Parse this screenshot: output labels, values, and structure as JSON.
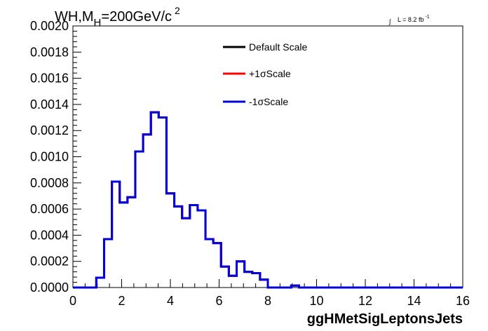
{
  "chart_data": {
    "type": "line",
    "title": {
      "main": "WH,M",
      "subscript": "H",
      "rest": "=200GeV/c",
      "superscript": "2"
    },
    "luminosity": {
      "integral_symbol": "∫",
      "text": "L = 8.2 fb",
      "superscript": "-1"
    },
    "xlabel": "ggHMetSigLeptonsJets",
    "ylabel": "",
    "xlim": [
      0,
      16
    ],
    "ylim": [
      0,
      0.002
    ],
    "x_ticks": [
      "0",
      "2",
      "4",
      "6",
      "8",
      "10",
      "12",
      "14",
      "16"
    ],
    "y_ticks": [
      "0.0000",
      "0.0002",
      "0.0004",
      "0.0006",
      "0.0008",
      "0.0010",
      "0.0012",
      "0.0014",
      "0.0016",
      "0.0018",
      "0.0020"
    ],
    "legend_position": "top-center",
    "bin_width": 0.32,
    "bin_low_edges": [
      0,
      0.32,
      0.64,
      0.96,
      1.28,
      1.6,
      1.92,
      2.24,
      2.56,
      2.88,
      3.2,
      3.52,
      3.84,
      4.16,
      4.48,
      4.8,
      5.12,
      5.44,
      5.76,
      6.08,
      6.4,
      6.72,
      7.04,
      7.36,
      7.68,
      8.0,
      8.32,
      8.64,
      8.96,
      9.28,
      9.6,
      9.92,
      10.24,
      10.56,
      10.88,
      11.2,
      11.52,
      11.84,
      12.16,
      12.48,
      12.8,
      13.12,
      13.44,
      13.76,
      14.08,
      14.4,
      14.72,
      15.04,
      15.36,
      15.68
    ],
    "series": [
      {
        "name": "Default Scale",
        "color": "#000000",
        "values": [
          0,
          0,
          0,
          7.5e-05,
          0.00037,
          0.00081,
          0.00065,
          0.00069,
          0.00104,
          0.00117,
          0.00134,
          0.0013,
          0.00072,
          0.00062,
          0.00053,
          0.00063,
          0.00059,
          0.00037,
          0.00034,
          0.00016,
          9e-05,
          0.0002,
          0.00012,
          0.00011,
          6e-05,
          0,
          0,
          0,
          1.5e-05,
          0,
          0,
          0,
          0,
          0,
          0,
          0,
          0,
          0,
          0,
          0,
          0,
          0,
          0,
          0,
          0,
          0,
          0,
          0,
          0,
          0
        ]
      },
      {
        "name": "+1σScale",
        "color": "#ff0000",
        "values": [
          0,
          0,
          0,
          7.5e-05,
          0.00037,
          0.00081,
          0.00065,
          0.00069,
          0.00104,
          0.00117,
          0.00134,
          0.0013,
          0.00072,
          0.00062,
          0.00053,
          0.00063,
          0.00059,
          0.00037,
          0.00034,
          0.00016,
          9e-05,
          0.0002,
          0.00012,
          0.00011,
          6e-05,
          0,
          0,
          0,
          1.5e-05,
          0,
          0,
          0,
          0,
          0,
          0,
          0,
          0,
          0,
          0,
          0,
          0,
          0,
          0,
          0,
          0,
          0,
          0,
          0,
          0,
          0
        ]
      },
      {
        "name": "-1σScale",
        "color": "#0000dd",
        "values": [
          0,
          0,
          0,
          7.5e-05,
          0.00037,
          0.00081,
          0.00065,
          0.00069,
          0.00104,
          0.00117,
          0.00134,
          0.0013,
          0.00072,
          0.00062,
          0.00053,
          0.00063,
          0.00059,
          0.00037,
          0.00034,
          0.00016,
          9e-05,
          0.0002,
          0.00012,
          0.00011,
          6e-05,
          0,
          0,
          0,
          1.5e-05,
          0,
          0,
          0,
          0,
          0,
          0,
          0,
          0,
          0,
          0,
          0,
          0,
          0,
          0,
          0,
          0,
          0,
          0,
          0,
          0,
          0
        ]
      }
    ]
  }
}
